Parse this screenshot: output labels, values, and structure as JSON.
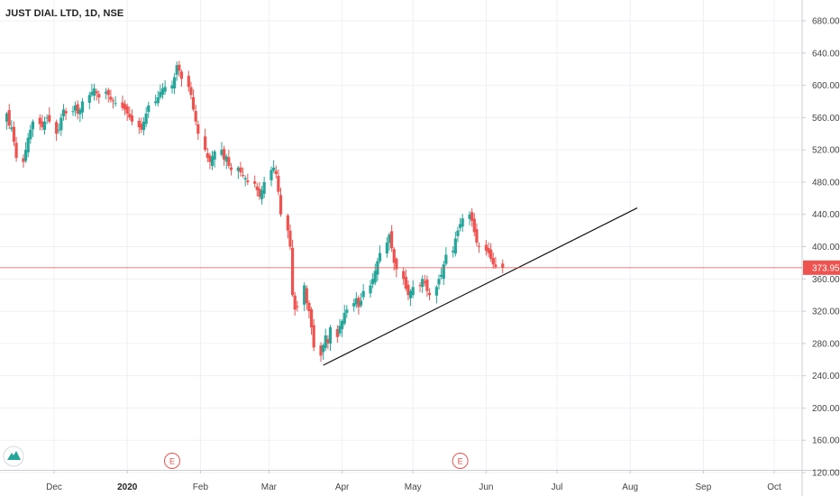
{
  "chart_data": {
    "type": "candlestick",
    "title": "JUST DIAL LTD, 1D, NSE",
    "y_axis": {
      "position": "right",
      "ticks": [
        "680.00",
        "640.00",
        "600.00",
        "560.00",
        "520.00",
        "480.00",
        "440.00",
        "400.00",
        "360.00",
        "320.00",
        "280.00",
        "240.00",
        "200.00",
        "160.00",
        "120.00"
      ],
      "ylim": [
        120,
        680
      ]
    },
    "x_axis": {
      "ticks": [
        {
          "date": "2019-12-01",
          "label": "Dec",
          "bold": false
        },
        {
          "date": "2020-01-01",
          "label": "2020",
          "bold": true
        },
        {
          "date": "2020-02-01",
          "label": "Feb",
          "bold": false
        },
        {
          "date": "2020-03-01",
          "label": "Mar",
          "bold": false
        },
        {
          "date": "2020-04-01",
          "label": "Apr",
          "bold": false
        },
        {
          "date": "2020-05-01",
          "label": "May",
          "bold": false
        },
        {
          "date": "2020-06-01",
          "label": "Jun",
          "bold": false
        },
        {
          "date": "2020-07-01",
          "label": "Jul",
          "bold": false
        },
        {
          "date": "2020-08-01",
          "label": "Aug",
          "bold": false
        },
        {
          "date": "2020-09-01",
          "label": "Sep",
          "bold": false
        },
        {
          "date": "2020-10-01",
          "label": "Oct",
          "bold": false
        }
      ]
    },
    "last_price": {
      "value": 373.95,
      "label": "373.95"
    },
    "events": [
      {
        "date": "2020-01-20",
        "label": "E"
      },
      {
        "date": "2020-05-21",
        "label": "E"
      }
    ],
    "trendline": {
      "start": {
        "date": "2020-03-24",
        "value": 253
      },
      "end": {
        "date": "2020-08-04",
        "value": 448
      }
    },
    "series": {
      "closes": [
        565,
        550,
        548,
        530,
        510,
        505,
        520,
        535,
        545,
        555,
        552,
        548,
        555,
        560,
        555,
        540,
        545,
        560,
        570,
        565,
        568,
        575,
        565,
        570,
        580,
        588,
        592,
        596,
        590,
        585,
        592,
        588,
        582,
        580,
        578,
        572,
        570,
        565,
        560,
        555,
        548,
        545,
        555,
        565,
        575,
        580,
        585,
        592,
        596,
        598,
        600,
        610,
        625,
        618,
        608,
        598,
        588,
        570,
        555,
        540,
        520,
        510,
        505,
        512,
        518,
        520,
        508,
        512,
        500,
        495,
        498,
        492,
        488,
        485,
        480,
        478,
        470,
        462,
        470,
        480,
        495,
        498,
        490,
        468,
        440,
        420,
        400,
        340,
        322,
        325,
        352,
        330,
        320,
        300,
        275,
        265,
        278,
        290,
        280,
        300,
        288,
        302,
        308,
        318,
        322,
        330,
        336,
        325,
        333,
        345,
        352,
        360,
        370,
        382,
        392,
        405,
        415,
        398,
        380,
        372,
        360,
        348,
        340,
        345,
        350,
        352,
        360,
        355,
        345,
        340,
        350,
        360,
        365,
        378,
        390,
        395,
        410,
        420,
        428,
        435,
        440,
        432,
        418,
        405,
        400,
        395,
        392,
        385,
        378,
        375,
        373.95
      ],
      "days": 151
    },
    "logo": {
      "name": "tradingview-logo"
    }
  }
}
